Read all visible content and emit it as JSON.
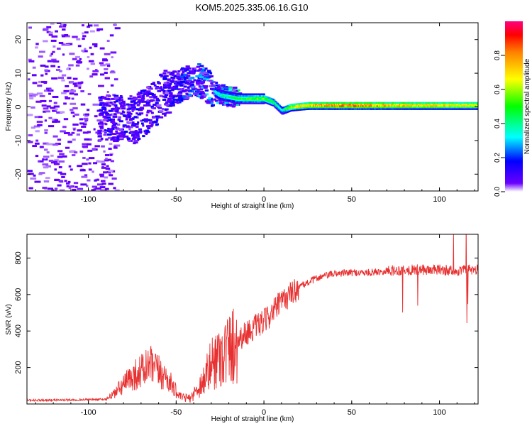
{
  "title": "KOM5.2025.335.06.16.G10",
  "chart_data": [
    {
      "type": "heatmap",
      "name": "spectrogram",
      "xlabel": "Height of straight line (km)",
      "ylabel": "Frequency (Hz)",
      "xlim": [
        -135,
        122
      ],
      "ylim": [
        -25,
        25
      ],
      "xticks": [
        -100,
        -50,
        0,
        50,
        100
      ],
      "yticks": [
        -20,
        -10,
        0,
        10,
        20
      ],
      "colorbar": {
        "label": "Normalized spectral amplitude",
        "range": [
          0,
          1
        ],
        "ticks": [
          0,
          0.2,
          0.4,
          0.6,
          0.8
        ],
        "colormap": "rainbow"
      },
      "ridge": [
        {
          "x": -85,
          "f": -3,
          "amp": 0.18
        },
        {
          "x": -75,
          "f": -4,
          "amp": 0.18
        },
        {
          "x": -65,
          "f": 0,
          "amp": 0.17
        },
        {
          "x": -55,
          "f": 5,
          "amp": 0.17
        },
        {
          "x": -45,
          "f": 7,
          "amp": 0.25
        },
        {
          "x": -40,
          "f": 8.5,
          "amp": 0.32
        },
        {
          "x": -35,
          "f": 7,
          "amp": 0.35
        },
        {
          "x": -30,
          "f": 5,
          "amp": 0.35
        },
        {
          "x": -25,
          "f": 3.5,
          "amp": 0.4
        },
        {
          "x": -15,
          "f": 2.5,
          "amp": 0.5
        },
        {
          "x": -5,
          "f": 2.5,
          "amp": 0.55
        },
        {
          "x": 0,
          "f": 2.5,
          "amp": 0.6
        },
        {
          "x": 5,
          "f": 1.5,
          "amp": 0.5
        },
        {
          "x": 10,
          "f": -1,
          "amp": 0.4
        },
        {
          "x": 15,
          "f": 0,
          "amp": 0.7
        },
        {
          "x": 25,
          "f": 0.5,
          "amp": 0.85
        },
        {
          "x": 50,
          "f": 0.5,
          "amp": 0.95
        },
        {
          "x": 75,
          "f": 0.5,
          "amp": 0.85
        },
        {
          "x": 100,
          "f": 0.5,
          "amp": 0.8
        },
        {
          "x": 122,
          "f": 0.5,
          "amp": 0.75
        }
      ]
    },
    {
      "type": "line",
      "name": "snr",
      "xlabel": "Height of straight line (km)",
      "ylabel": "SNR (v/v)",
      "xlim": [
        -135,
        122
      ],
      "ylim": [
        0,
        930
      ],
      "xticks": [
        -100,
        -50,
        0,
        50,
        100
      ],
      "yticks": [
        200,
        400,
        600,
        800
      ],
      "series_color": "#e83030",
      "envelope": [
        {
          "x": -135,
          "v": 20
        },
        {
          "x": -90,
          "v": 25
        },
        {
          "x": -85,
          "v": 60
        },
        {
          "x": -75,
          "v": 150
        },
        {
          "x": -65,
          "v": 210
        },
        {
          "x": -55,
          "v": 140
        },
        {
          "x": -48,
          "v": 40
        },
        {
          "x": -42,
          "v": 30
        },
        {
          "x": -35,
          "v": 120
        },
        {
          "x": -28,
          "v": 250
        },
        {
          "x": -20,
          "v": 300
        },
        {
          "x": -15,
          "v": 350
        },
        {
          "x": -10,
          "v": 390
        },
        {
          "x": 0,
          "v": 450
        },
        {
          "x": 10,
          "v": 560
        },
        {
          "x": 20,
          "v": 640
        },
        {
          "x": 30,
          "v": 690
        },
        {
          "x": 40,
          "v": 715
        },
        {
          "x": 50,
          "v": 720
        },
        {
          "x": 60,
          "v": 720
        },
        {
          "x": 70,
          "v": 730
        },
        {
          "x": 80,
          "v": 735
        },
        {
          "x": 90,
          "v": 735
        },
        {
          "x": 100,
          "v": 735
        },
        {
          "x": 110,
          "v": 730
        },
        {
          "x": 122,
          "v": 735
        }
      ]
    }
  ]
}
